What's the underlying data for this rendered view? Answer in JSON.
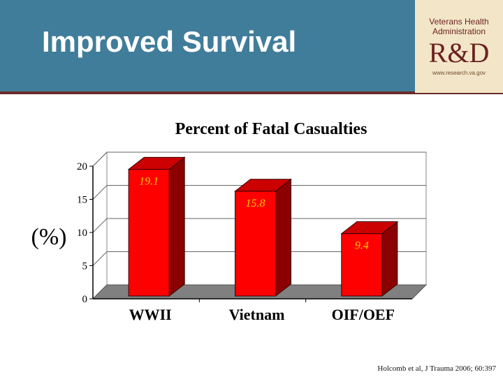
{
  "slide": {
    "title": "Improved Survival",
    "citation": "Holcomb et al, J Trauma 2006; 60:397"
  },
  "logo": {
    "line1": "Veterans Health",
    "line2": "Administration",
    "mark": "R&D",
    "url": "www.research.va.gov"
  },
  "colors": {
    "header": "#407d9a",
    "bar_front": "#ff0000",
    "bar_side": "#8b0000",
    "bar_top": "#cc0000",
    "value_label": "#ffcc00"
  },
  "chart_data": {
    "type": "bar",
    "title": "Percent of Fatal Casualties",
    "ylabel": "(%)",
    "categories": [
      "WWII",
      "Vietnam",
      "OIF/OEF"
    ],
    "values": [
      19.1,
      15.8,
      9.4
    ],
    "value_labels": [
      "19.1",
      "15.8",
      "9.4"
    ],
    "ylim": [
      0,
      20
    ],
    "yticks": [
      "0",
      "5",
      "10",
      "15",
      "20"
    ],
    "grid": true,
    "legend": "none",
    "style": "3d"
  }
}
